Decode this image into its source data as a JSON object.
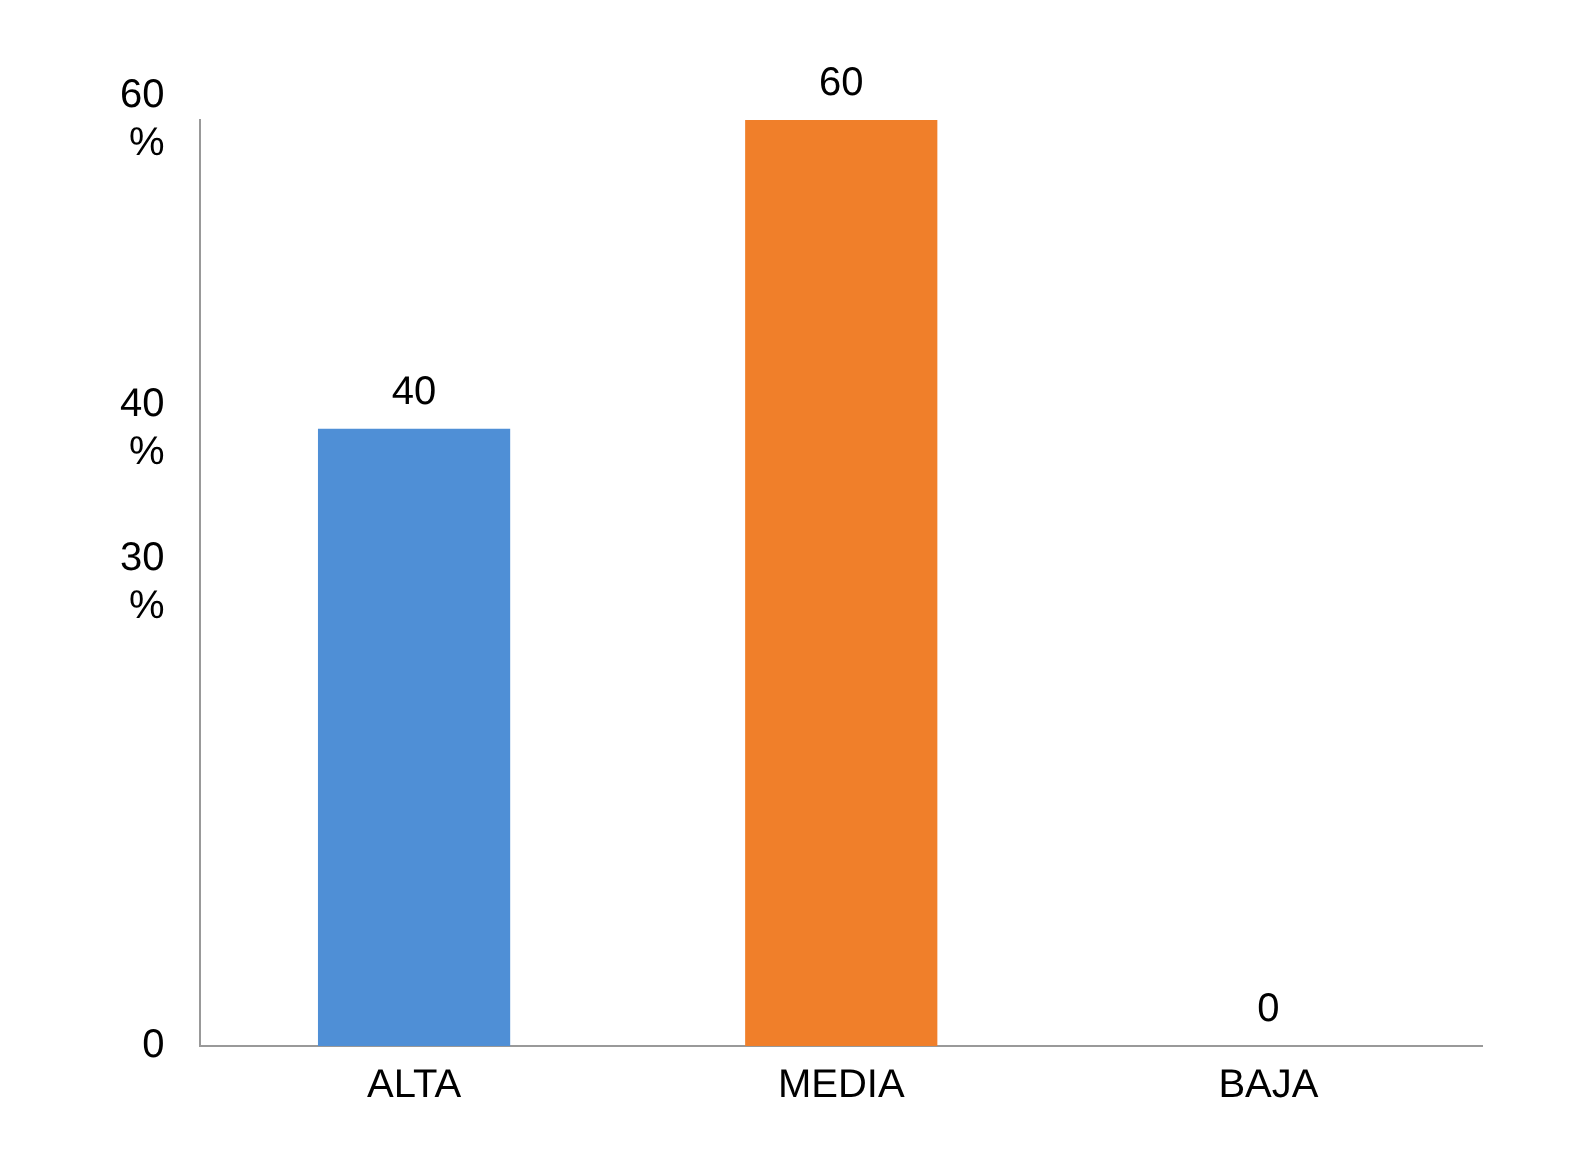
{
  "chart_data": {
    "type": "bar",
    "categories": [
      "ALTA",
      "MEDIA",
      "BAJA"
    ],
    "values": [
      40,
      60,
      0
    ],
    "colors": [
      "#4f8fd6",
      "#f07f2a",
      "#7f7f7f"
    ],
    "ylim": [
      0,
      60
    ],
    "yticks": [
      0,
      {
        "value": 30,
        "label": "30 %"
      },
      {
        "value": 40,
        "label": "40 %"
      },
      {
        "value": 60,
        "label": "60 %"
      }
    ],
    "data_labels": true,
    "grid": false,
    "legend": false
  }
}
